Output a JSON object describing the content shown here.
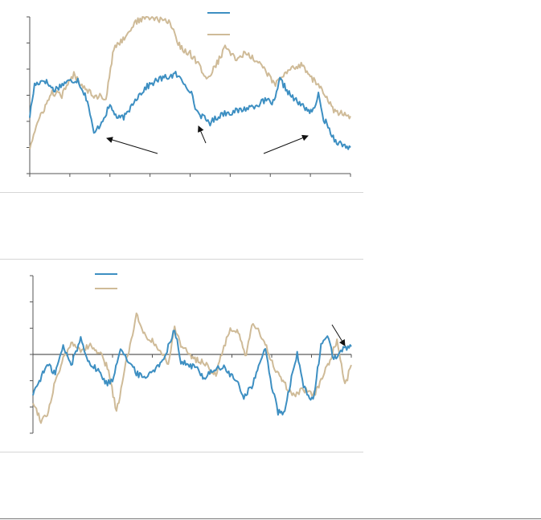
{
  "colors": {
    "series_a": "#3d8fc2",
    "series_b": "#cfbb98",
    "axis": "#555555"
  },
  "chart_data": [
    {
      "type": "line",
      "title": "",
      "xlabel": "",
      "ylabel": "",
      "x_range": [
        0,
        400
      ],
      "x_tick_count": 9,
      "ylim": [
        0,
        6
      ],
      "y_tick_count": 7,
      "grid": false,
      "legend": "top-center",
      "series": [
        {
          "color_key": "series_a",
          "anchors": [
            [
              0,
              2.2
            ],
            [
              6,
              3.4
            ],
            [
              18,
              3.6
            ],
            [
              30,
              3.2
            ],
            [
              45,
              3.5
            ],
            [
              60,
              3.6
            ],
            [
              72,
              2.8
            ],
            [
              80,
              1.5
            ],
            [
              88,
              1.9
            ],
            [
              100,
              2.6
            ],
            [
              110,
              2.1
            ],
            [
              120,
              2.2
            ],
            [
              130,
              2.8
            ],
            [
              145,
              3.3
            ],
            [
              160,
              3.6
            ],
            [
              172,
              3.7
            ],
            [
              182,
              3.8
            ],
            [
              192,
              3.5
            ],
            [
              200,
              3.2
            ],
            [
              208,
              2.4
            ],
            [
              218,
              2.1
            ],
            [
              225,
              1.95
            ],
            [
              240,
              2.3
            ],
            [
              260,
              2.4
            ],
            [
              280,
              2.6
            ],
            [
              295,
              2.8
            ],
            [
              305,
              2.7
            ],
            [
              312,
              3.6
            ],
            [
              325,
              3.0
            ],
            [
              335,
              2.7
            ],
            [
              345,
              2.5
            ],
            [
              352,
              2.3
            ],
            [
              360,
              3.0
            ],
            [
              365,
              2.2
            ],
            [
              372,
              1.8
            ],
            [
              380,
              1.3
            ],
            [
              390,
              1.1
            ],
            [
              400,
              1.0
            ]
          ]
        },
        {
          "color_key": "series_b",
          "anchors": [
            [
              0,
              1.0
            ],
            [
              8,
              1.8
            ],
            [
              18,
              2.5
            ],
            [
              28,
              3.1
            ],
            [
              40,
              3.0
            ],
            [
              55,
              3.8
            ],
            [
              65,
              3.4
            ],
            [
              80,
              3.0
            ],
            [
              95,
              2.9
            ],
            [
              105,
              4.8
            ],
            [
              118,
              5.2
            ],
            [
              132,
              5.8
            ],
            [
              145,
              6.0
            ],
            [
              160,
              5.9
            ],
            [
              175,
              5.8
            ],
            [
              188,
              4.8
            ],
            [
              200,
              4.6
            ],
            [
              210,
              4.2
            ],
            [
              222,
              3.6
            ],
            [
              235,
              4.3
            ],
            [
              245,
              4.9
            ],
            [
              255,
              4.4
            ],
            [
              270,
              4.6
            ],
            [
              285,
              4.3
            ],
            [
              295,
              3.9
            ],
            [
              305,
              3.4
            ],
            [
              315,
              3.7
            ],
            [
              325,
              4.0
            ],
            [
              340,
              4.2
            ],
            [
              350,
              3.7
            ],
            [
              360,
              3.4
            ],
            [
              372,
              2.8
            ],
            [
              382,
              2.3
            ],
            [
              390,
              2.3
            ],
            [
              400,
              2.2
            ]
          ]
        }
      ]
    },
    {
      "type": "line",
      "title": "",
      "xlabel": "",
      "ylabel": "",
      "x_range": [
        0,
        400
      ],
      "ylim": [
        -3,
        3
      ],
      "y_tick_count": 7,
      "zero_line": true,
      "grid": false,
      "legend": "top-left",
      "series": [
        {
          "color_key": "series_a",
          "anchors": [
            [
              0,
              -1.5
            ],
            [
              8,
              -1.0
            ],
            [
              18,
              -0.4
            ],
            [
              28,
              -0.7
            ],
            [
              38,
              0.3
            ],
            [
              48,
              -0.4
            ],
            [
              60,
              0.6
            ],
            [
              72,
              -0.4
            ],
            [
              82,
              -0.6
            ],
            [
              92,
              -1.1
            ],
            [
              100,
              -1.0
            ],
            [
              110,
              0.3
            ],
            [
              120,
              -0.3
            ],
            [
              130,
              -0.7
            ],
            [
              140,
              -0.9
            ],
            [
              150,
              -0.6
            ],
            [
              160,
              -0.4
            ],
            [
              170,
              0.3
            ],
            [
              178,
              1.0
            ],
            [
              186,
              -0.3
            ],
            [
              195,
              -0.4
            ],
            [
              205,
              -0.5
            ],
            [
              215,
              -0.9
            ],
            [
              225,
              -0.6
            ],
            [
              240,
              -0.5
            ],
            [
              255,
              -1.0
            ],
            [
              265,
              -1.6
            ],
            [
              275,
              -1.2
            ],
            [
              285,
              -0.4
            ],
            [
              292,
              0.3
            ],
            [
              300,
              -1.2
            ],
            [
              308,
              -2.2
            ],
            [
              315,
              -2.3
            ],
            [
              322,
              -1.3
            ],
            [
              332,
              0.0
            ],
            [
              340,
              -1.2
            ],
            [
              352,
              -1.8
            ],
            [
              362,
              0.3
            ],
            [
              370,
              0.8
            ],
            [
              378,
              -0.2
            ],
            [
              390,
              0.2
            ],
            [
              400,
              0.3
            ]
          ]
        },
        {
          "color_key": "series_b",
          "anchors": [
            [
              0,
              -1.8
            ],
            [
              10,
              -2.5
            ],
            [
              18,
              -2.3
            ],
            [
              28,
              -1.0
            ],
            [
              38,
              -0.2
            ],
            [
              48,
              0.4
            ],
            [
              60,
              0.2
            ],
            [
              72,
              0.3
            ],
            [
              85,
              0.0
            ],
            [
              95,
              -0.6
            ],
            [
              105,
              -2.2
            ],
            [
              115,
              -0.6
            ],
            [
              122,
              0.4
            ],
            [
              130,
              1.5
            ],
            [
              140,
              0.8
            ],
            [
              150,
              0.5
            ],
            [
              160,
              0.1
            ],
            [
              170,
              -0.3
            ],
            [
              178,
              1.0
            ],
            [
              186,
              0.4
            ],
            [
              195,
              0.0
            ],
            [
              205,
              -0.2
            ],
            [
              215,
              -0.3
            ],
            [
              230,
              -0.8
            ],
            [
              240,
              0.3
            ],
            [
              248,
              1.0
            ],
            [
              258,
              0.8
            ],
            [
              268,
              -0.1
            ],
            [
              275,
              1.1
            ],
            [
              283,
              0.9
            ],
            [
              292,
              0.4
            ],
            [
              302,
              -0.4
            ],
            [
              310,
              -0.9
            ],
            [
              320,
              -1.3
            ],
            [
              330,
              -1.6
            ],
            [
              340,
              -1.3
            ],
            [
              352,
              -1.6
            ],
            [
              362,
              -1.0
            ],
            [
              372,
              -0.3
            ],
            [
              382,
              0.5
            ],
            [
              392,
              -1.2
            ],
            [
              400,
              -0.4
            ]
          ]
        }
      ]
    }
  ]
}
